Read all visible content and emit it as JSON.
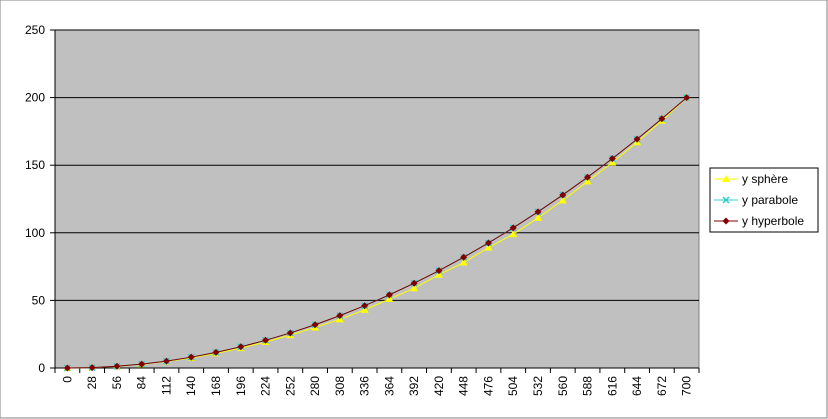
{
  "chart_data": {
    "type": "line",
    "categories": [
      "0",
      "28",
      "56",
      "84",
      "112",
      "140",
      "168",
      "196",
      "224",
      "252",
      "280",
      "308",
      "336",
      "364",
      "392",
      "420",
      "448",
      "476",
      "504",
      "532",
      "560",
      "588",
      "616",
      "644",
      "672",
      "700"
    ],
    "series": [
      {
        "name": "y sphère",
        "color": "#ffff00",
        "marker": "triangle",
        "values": [
          0,
          0.3,
          1.2,
          2.7,
          4.8,
          7.5,
          10.8,
          14.7,
          19.2,
          24.3,
          30,
          36,
          43,
          51,
          59,
          69,
          78,
          89,
          99,
          111,
          124,
          138,
          152,
          167,
          183,
          200
        ]
      },
      {
        "name": "y parabole",
        "color": "#33cccc",
        "marker": "x",
        "values": [
          0,
          0.3,
          1.3,
          2.9,
          5.1,
          8,
          11.5,
          15.7,
          20.5,
          25.9,
          32,
          38.7,
          46.1,
          54.1,
          62.7,
          72,
          81.9,
          92.5,
          103.7,
          115.5,
          128,
          141.1,
          154.9,
          169.3,
          184.3,
          200
        ]
      },
      {
        "name": "y hyperbole",
        "color": "#800000",
        "marker": "diamond",
        "values": [
          0,
          0.32,
          1.28,
          2.88,
          5.12,
          8,
          11.52,
          15.68,
          20.48,
          25.92,
          32,
          38.72,
          46.08,
          54.08,
          62.72,
          72,
          81.92,
          92.48,
          103.68,
          115.52,
          128,
          141.12,
          154.88,
          169.28,
          184.32,
          200
        ]
      }
    ],
    "ylim": [
      0,
      250
    ],
    "yticks": [
      0,
      50,
      100,
      150,
      200,
      250
    ],
    "grid": true,
    "legend": "right",
    "plot_background": "#c0c0c0"
  }
}
